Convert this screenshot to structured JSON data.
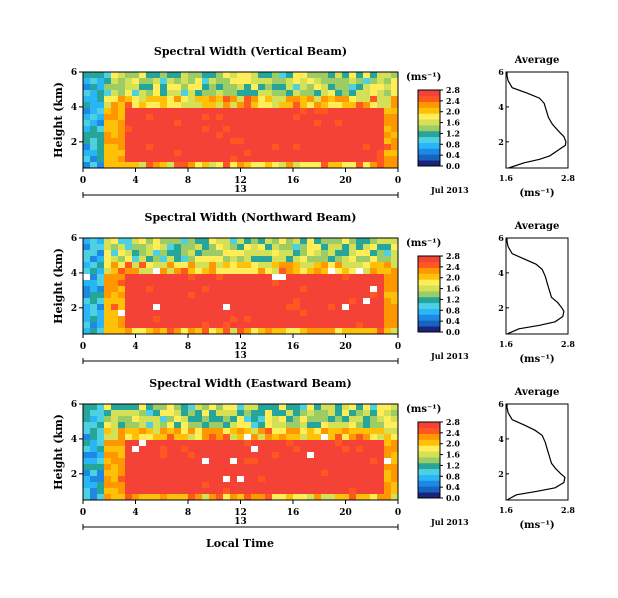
{
  "figure": {
    "xlabel": "Local Time",
    "date_label": "Jul 2013",
    "day_label": "13",
    "avg_title": "Average",
    "unit_label": "(ms⁻¹)"
  },
  "colorscale": [
    "#1a237e",
    "#1565c0",
    "#1e88e5",
    "#29b6f6",
    "#4dd0e1",
    "#26a69a",
    "#9ccc65",
    "#d4e157",
    "#ffee58",
    "#ffc107",
    "#ff9800",
    "#ff5722",
    "#f44336"
  ],
  "chart_data": [
    {
      "type": "heatmap",
      "title": "Spectral Width (Vertical Beam)",
      "ylabel": "Height (km)",
      "xlim": [
        0,
        24
      ],
      "ylim": [
        0.5,
        6
      ],
      "x_ticks": [
        "0",
        "4",
        "8",
        "12",
        "16",
        "20",
        "0"
      ],
      "y_ticks": [
        "6",
        "4",
        "2"
      ],
      "colorbar": {
        "unit": "(ms⁻¹)",
        "ticks": [
          "0.0",
          "0.4",
          "0.8",
          "1.2",
          "1.6",
          "2.0",
          "2.4",
          "2.8"
        ],
        "range": [
          0,
          2.8
        ]
      },
      "average": {
        "title": "Average",
        "xlabel": "(ms⁻¹)",
        "x_ticks": [
          "1.6",
          "2.8"
        ],
        "xlim": [
          1.6,
          2.8
        ],
        "y_ticks": [
          "6",
          "4",
          "2"
        ],
        "ylim": [
          0.5,
          6
        ],
        "heights": [
          0.5,
          0.8,
          1.0,
          1.2,
          1.5,
          1.8,
          2.0,
          2.3,
          2.6,
          3.0,
          3.4,
          3.8,
          4.2,
          4.5,
          4.8,
          5.1,
          5.5,
          5.8,
          6.0
        ],
        "values": [
          1.65,
          1.95,
          2.25,
          2.45,
          2.6,
          2.75,
          2.76,
          2.72,
          2.62,
          2.5,
          2.42,
          2.38,
          2.34,
          2.25,
          2.0,
          1.72,
          1.64,
          1.62,
          1.62
        ]
      }
    },
    {
      "type": "heatmap",
      "title": "Spectral Width (Northward Beam)",
      "ylabel": "Height (km)",
      "xlim": [
        0,
        24
      ],
      "ylim": [
        0.5,
        6
      ],
      "x_ticks": [
        "0",
        "4",
        "8",
        "12",
        "16",
        "20",
        "0"
      ],
      "y_ticks": [
        "6",
        "4",
        "2"
      ],
      "colorbar": {
        "unit": "(ms⁻¹)",
        "ticks": [
          "0.0",
          "0.4",
          "0.8",
          "1.2",
          "1.6",
          "2.0",
          "2.4",
          "2.8"
        ],
        "range": [
          0,
          2.8
        ]
      },
      "average": {
        "title": "Average",
        "xlabel": "(ms⁻¹)",
        "x_ticks": [
          "1.6",
          "2.8"
        ],
        "xlim": [
          1.6,
          2.8
        ],
        "y_ticks": [
          "6",
          "4",
          "2"
        ],
        "ylim": [
          0.5,
          6
        ],
        "heights": [
          0.5,
          0.8,
          1.0,
          1.2,
          1.5,
          1.8,
          2.0,
          2.3,
          2.6,
          3.0,
          3.4,
          3.8,
          4.2,
          4.5,
          4.8,
          5.1,
          5.5,
          5.8,
          6.0
        ],
        "values": [
          1.62,
          1.85,
          2.25,
          2.55,
          2.7,
          2.72,
          2.68,
          2.6,
          2.48,
          2.44,
          2.4,
          2.36,
          2.3,
          2.18,
          1.95,
          1.72,
          1.64,
          1.62,
          1.62
        ]
      }
    },
    {
      "type": "heatmap",
      "title": "Spectral Width (Eastward Beam)",
      "ylabel": "Height (km)",
      "xlim": [
        0,
        24
      ],
      "ylim": [
        0.5,
        6
      ],
      "x_ticks": [
        "0",
        "4",
        "8",
        "12",
        "16",
        "20",
        "0"
      ],
      "y_ticks": [
        "6",
        "4",
        "2"
      ],
      "colorbar": {
        "unit": "(ms⁻¹)",
        "ticks": [
          "0.0",
          "0.4",
          "0.8",
          "1.2",
          "1.6",
          "2.0",
          "2.4",
          "2.8"
        ],
        "range": [
          0,
          2.8
        ]
      },
      "average": {
        "title": "Average",
        "xlabel": "(ms⁻¹)",
        "x_ticks": [
          "1.6",
          "2.8"
        ],
        "xlim": [
          1.6,
          2.8
        ],
        "y_ticks": [
          "6",
          "4",
          "2"
        ],
        "ylim": [
          0.5,
          6
        ],
        "heights": [
          0.5,
          0.8,
          1.0,
          1.2,
          1.5,
          1.8,
          2.0,
          2.3,
          2.6,
          3.0,
          3.4,
          3.8,
          4.2,
          4.5,
          4.8,
          5.1,
          5.5,
          5.8,
          6.0
        ],
        "values": [
          1.62,
          1.8,
          2.2,
          2.55,
          2.72,
          2.74,
          2.66,
          2.56,
          2.48,
          2.44,
          2.4,
          2.36,
          2.3,
          2.16,
          1.95,
          1.72,
          1.64,
          1.62,
          1.62
        ]
      }
    }
  ]
}
